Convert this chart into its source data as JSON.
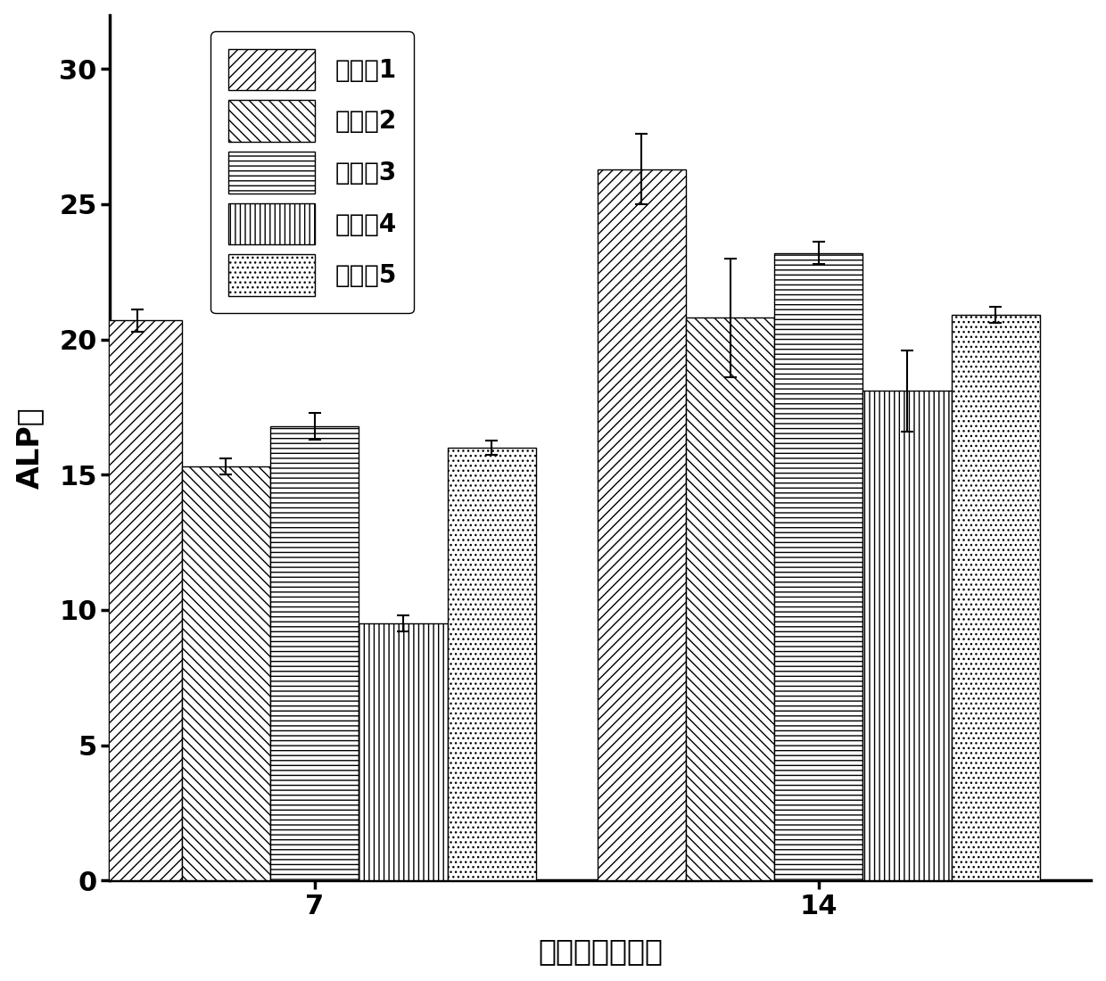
{
  "title": "",
  "xlabel": "培养时间（天）",
  "ylabel": "ALP值",
  "groups": [
    "7",
    "14"
  ],
  "series_labels": [
    "实验组1",
    "实验组2",
    "实验组3",
    "实验组4",
    "实验组5"
  ],
  "values": [
    [
      20.7,
      15.3,
      16.8,
      9.5,
      16.0
    ],
    [
      26.3,
      20.8,
      23.2,
      18.1,
      20.9
    ]
  ],
  "errors": [
    [
      0.4,
      0.3,
      0.5,
      0.3,
      0.25
    ],
    [
      1.3,
      2.2,
      0.4,
      1.5,
      0.3
    ]
  ],
  "ylim": [
    0,
    32
  ],
  "yticks": [
    0,
    5,
    10,
    15,
    20,
    25,
    30
  ],
  "hatches": [
    "///",
    "\\\\\\",
    "---",
    "|||",
    "..."
  ],
  "facecolor": "white",
  "edgecolor": "black",
  "bar_width": 0.13,
  "fontsize_label": 24,
  "fontsize_tick": 22,
  "fontsize_legend": 20
}
